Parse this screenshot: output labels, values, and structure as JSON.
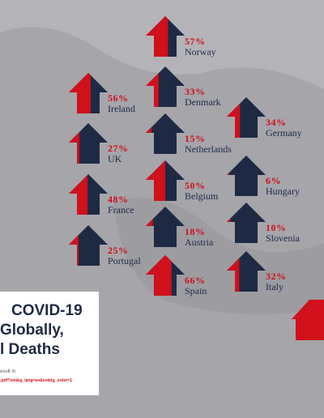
{
  "chart_data": {
    "type": "pictograph",
    "categories": [
      "Norway",
      "Ireland",
      "Denmark",
      "Germany",
      "UK",
      "Netherlands",
      "France",
      "Belgium",
      "Hungary",
      "Portugal",
      "Austria",
      "Slovenia",
      "Spain",
      "Italy"
    ],
    "values": [
      57,
      56,
      33,
      34,
      27,
      15,
      48,
      50,
      6,
      25,
      18,
      10,
      66,
      32
    ],
    "value_labels": [
      "57%",
      "56%",
      "33%",
      "34%",
      "27%",
      "15%",
      "48%",
      "50%",
      "6%",
      "25%",
      "18%",
      "10%",
      "66%",
      "32%"
    ],
    "fill_color": "#d0101b",
    "base_color": "#1e2a44",
    "ylim": [
      0,
      100
    ]
  },
  "panel": {
    "lines": [
      "COVID-19",
      "Globally,",
      "l Deaths"
    ],
    "note": "esult in",
    "link": ".pdf?sm&ig_lang=en&smktg_order=1"
  }
}
